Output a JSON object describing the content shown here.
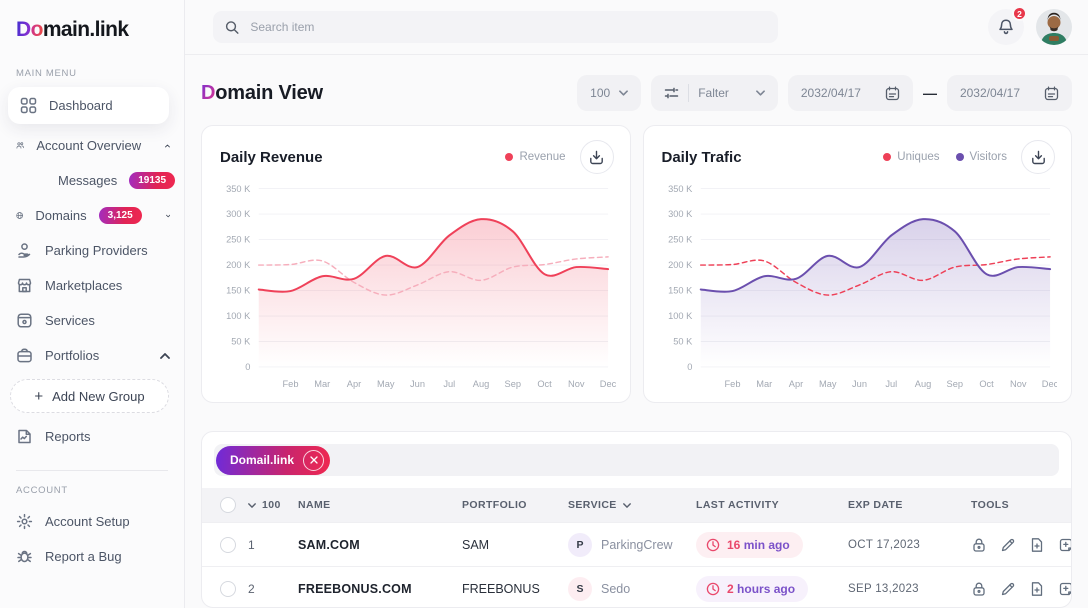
{
  "brand": {
    "logo_d": "D",
    "logo_o": "o",
    "logo_rest": "main.link"
  },
  "topbar": {
    "search_placeholder": "Search item",
    "notification_count": "2"
  },
  "sidebar": {
    "section_main": "MAIN MENU",
    "section_account": "ACCOUNT",
    "items": [
      {
        "label": "Dashboard",
        "icon": "dashboard-grid"
      },
      {
        "label": "Account Overview",
        "icon": "users"
      },
      {
        "label": "Messages",
        "icon": "envelope",
        "badge": "19135"
      },
      {
        "label": "Domains",
        "icon": "globe",
        "badge": "3,125"
      },
      {
        "label": "Parking Providers",
        "icon": "parking"
      },
      {
        "label": "Marketplaces",
        "icon": "storefront"
      },
      {
        "label": "Services",
        "icon": "package"
      },
      {
        "label": "Portfolios",
        "icon": "briefcase"
      },
      {
        "label": "Reports",
        "icon": "report"
      }
    ],
    "add_group_plus": "+",
    "add_group_label": "Add New Group",
    "account_items": [
      {
        "label": "Account Setup",
        "icon": "gear"
      },
      {
        "label": "Report a Bug",
        "icon": "bug"
      }
    ]
  },
  "header": {
    "title_accent": "D",
    "title_rest": "omain View"
  },
  "filters": {
    "page_size": "100",
    "filter_label": "Falter",
    "date_from": "2032/04/17",
    "date_separator": "—",
    "date_to": "2032/04/17"
  },
  "chart_data": [
    {
      "type": "area",
      "title": "Daily Revenue",
      "x_labels": [
        "Feb",
        "Mar",
        "Apr",
        "May",
        "Jun",
        "Jul",
        "Aug",
        "Sep",
        "Oct",
        "Nov",
        "Dec"
      ],
      "y_ticks": [
        "350 K",
        "300 K",
        "250 K",
        "200 K",
        "150 K",
        "100 K",
        "50 K",
        "0"
      ],
      "ylim": [
        0,
        350
      ],
      "grid": true,
      "legend_position": "top-right",
      "legend": [
        {
          "label": "Revenue",
          "color": "#ef4159"
        }
      ],
      "series": [
        {
          "name": "Revenue",
          "style": "solid",
          "fill": true,
          "color": "#ef4159",
          "values": [
            152,
            149,
            178,
            173,
            218,
            196,
            258,
            290,
            266,
            182,
            196,
            192
          ]
        },
        {
          "name": "Revenue previous",
          "style": "dashed",
          "fill": false,
          "color": "#f6aebc",
          "values": [
            200,
            201,
            208,
            166,
            141,
            161,
            187,
            170,
            196,
            201,
            212,
            216
          ]
        }
      ]
    },
    {
      "type": "area",
      "title": "Daily Trafic",
      "x_labels": [
        "Feb",
        "Mar",
        "Apr",
        "May",
        "Jun",
        "Jul",
        "Aug",
        "Sep",
        "Oct",
        "Nov",
        "Dec"
      ],
      "y_ticks": [
        "350 K",
        "300 K",
        "250 K",
        "200 K",
        "150 K",
        "100 K",
        "50 K",
        "0"
      ],
      "ylim": [
        0,
        350
      ],
      "grid": true,
      "legend_position": "top-right",
      "legend": [
        {
          "label": "Uniques",
          "color": "#ee4057"
        },
        {
          "label": "Visitors",
          "color": "#6b4fae"
        }
      ],
      "series": [
        {
          "name": "Visitors",
          "style": "solid",
          "fill": true,
          "color": "#6b4fae",
          "values": [
            152,
            149,
            178,
            173,
            218,
            196,
            258,
            290,
            266,
            182,
            196,
            192
          ]
        },
        {
          "name": "Uniques",
          "style": "dashed",
          "fill": false,
          "color": "#ee4057",
          "values": [
            200,
            201,
            208,
            166,
            141,
            161,
            187,
            170,
            196,
            201,
            212,
            216
          ]
        }
      ]
    }
  ],
  "table": {
    "chip_label": "Domail.link",
    "columns": [
      "100",
      "NAME",
      "PORTFOLIO",
      "SERVICE",
      "LAST ACTIVITY",
      "EXP DATE",
      "TOOLS"
    ],
    "rows": [
      {
        "num": "1",
        "name": "SAM.COM",
        "portfolio": "SAM",
        "service_initial": "P",
        "service_initial_bg": "#f1ecfa",
        "service": "ParkingCrew",
        "activity_value": "16",
        "activity_unit": "min ago",
        "activity_bg": "#fdeff2",
        "exp_date": "OCT 17,2023"
      },
      {
        "num": "2",
        "name": "FREEBONUS.COM",
        "portfolio": "FREEBONUS",
        "service_initial": "S",
        "service_initial_bg": "#fdedf1",
        "service": "Sedo",
        "activity_value": "2",
        "activity_unit": "hours ago",
        "activity_bg": "#f7f1fc",
        "exp_date": "SEP 13,2023"
      }
    ],
    "tools": [
      "lock",
      "edit",
      "file-add",
      "note-add"
    ]
  }
}
